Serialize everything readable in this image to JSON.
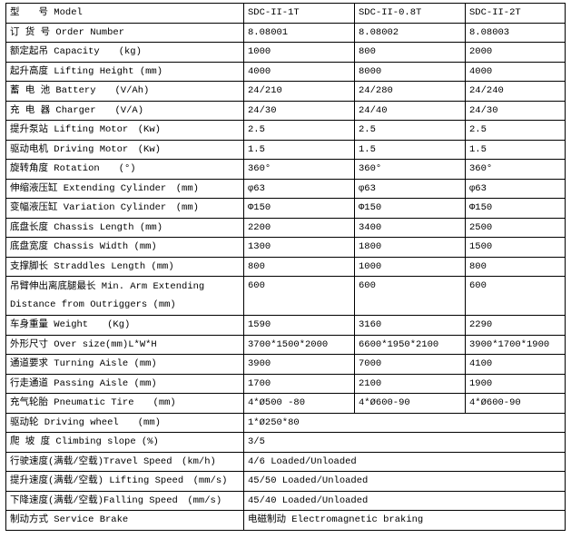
{
  "table": {
    "header": [
      "型　　号 Model",
      "SDC-II-1T",
      "SDC-II-0.8T",
      "SDC-II-2T"
    ],
    "rows": [
      [
        "订 货 号 Order Number",
        "8.08001",
        "8.08002",
        "8.08003"
      ],
      [
        "额定起吊 Capacity　　(kg)",
        "1000",
        "800",
        "2000"
      ],
      [
        "起升高度 Lifting Height (mm)",
        "4000",
        "8000",
        "4000"
      ],
      [
        "蓄 电 池 Battery　　(V/Ah)",
        "24/210",
        "24/280",
        "24/240"
      ],
      [
        "充 电 器 Charger　　(V/A)",
        "24/30",
        "24/40",
        "24/30"
      ],
      [
        "提升泵站 Lifting Motor　(Kw)",
        "2.5",
        "2.5",
        "2.5"
      ],
      [
        "驱动电机 Driving Motor　(Kw)",
        "1.5",
        "1.5",
        "1.5"
      ],
      [
        "旋转角度 Rotation　　(°)",
        "360°",
        "360°",
        "360°"
      ],
      [
        "伸缩液压缸 Extending Cylinder　(mm)",
        "φ63",
        "φ63",
        "φ63"
      ],
      [
        "变幅液压缸 Variation Cylinder　(mm)",
        "Φ150",
        "Φ150",
        "Φ150"
      ],
      [
        "底盘长度 Chassis Length (mm)",
        "2200",
        "3400",
        "2500"
      ],
      [
        "底盘宽度 Chassis Width (mm)",
        "1300",
        "1800",
        "1500"
      ],
      [
        "支撑脚长 Straddles Length (mm)",
        "800",
        "1000",
        "800"
      ],
      [
        "吊臂伸出离底腿最长 Min. Arm Extending Distance from Outriggers (mm)",
        "600",
        "600",
        "600"
      ],
      [
        "车身重量 Weight　　(Kg)",
        "1590",
        "3160",
        "2290"
      ],
      [
        "外形尺寸 Over size(mm)L*W*H",
        "3700*1500*2000",
        "6600*1950*2100",
        "3900*1700*1900"
      ],
      [
        "通道要求 Turning Aisle (mm)",
        "3900",
        "7000",
        "4100"
      ],
      [
        "行走通道 Passing Aisle (mm)",
        "1700",
        "2100",
        "1900"
      ],
      [
        "充气轮胎 Pneumatic Tire　　(mm)",
        "4*Ø500 -80",
        "4*Ø600-90",
        "4*Ø600-90"
      ],
      [
        "驱动轮 Driving wheel　　(mm)",
        "1*Ø250*80"
      ],
      [
        "爬 坡 度 Climbing slope (%)",
        "3/5"
      ],
      [
        "行驶速度(满载/空载)Travel Speed　(km/h)",
        "4/6 Loaded/Unloaded"
      ],
      [
        "提升速度(满载/空载) Lifting Speed　(mm/s)",
        "45/50 Loaded/Unloaded"
      ],
      [
        "下降速度(满载/空载)Falling Speed　(mm/s)",
        "45/40 Loaded/Unloaded"
      ],
      [
        "制动方式 Service Brake",
        "电磁制动 Electromagnetic braking"
      ]
    ]
  }
}
